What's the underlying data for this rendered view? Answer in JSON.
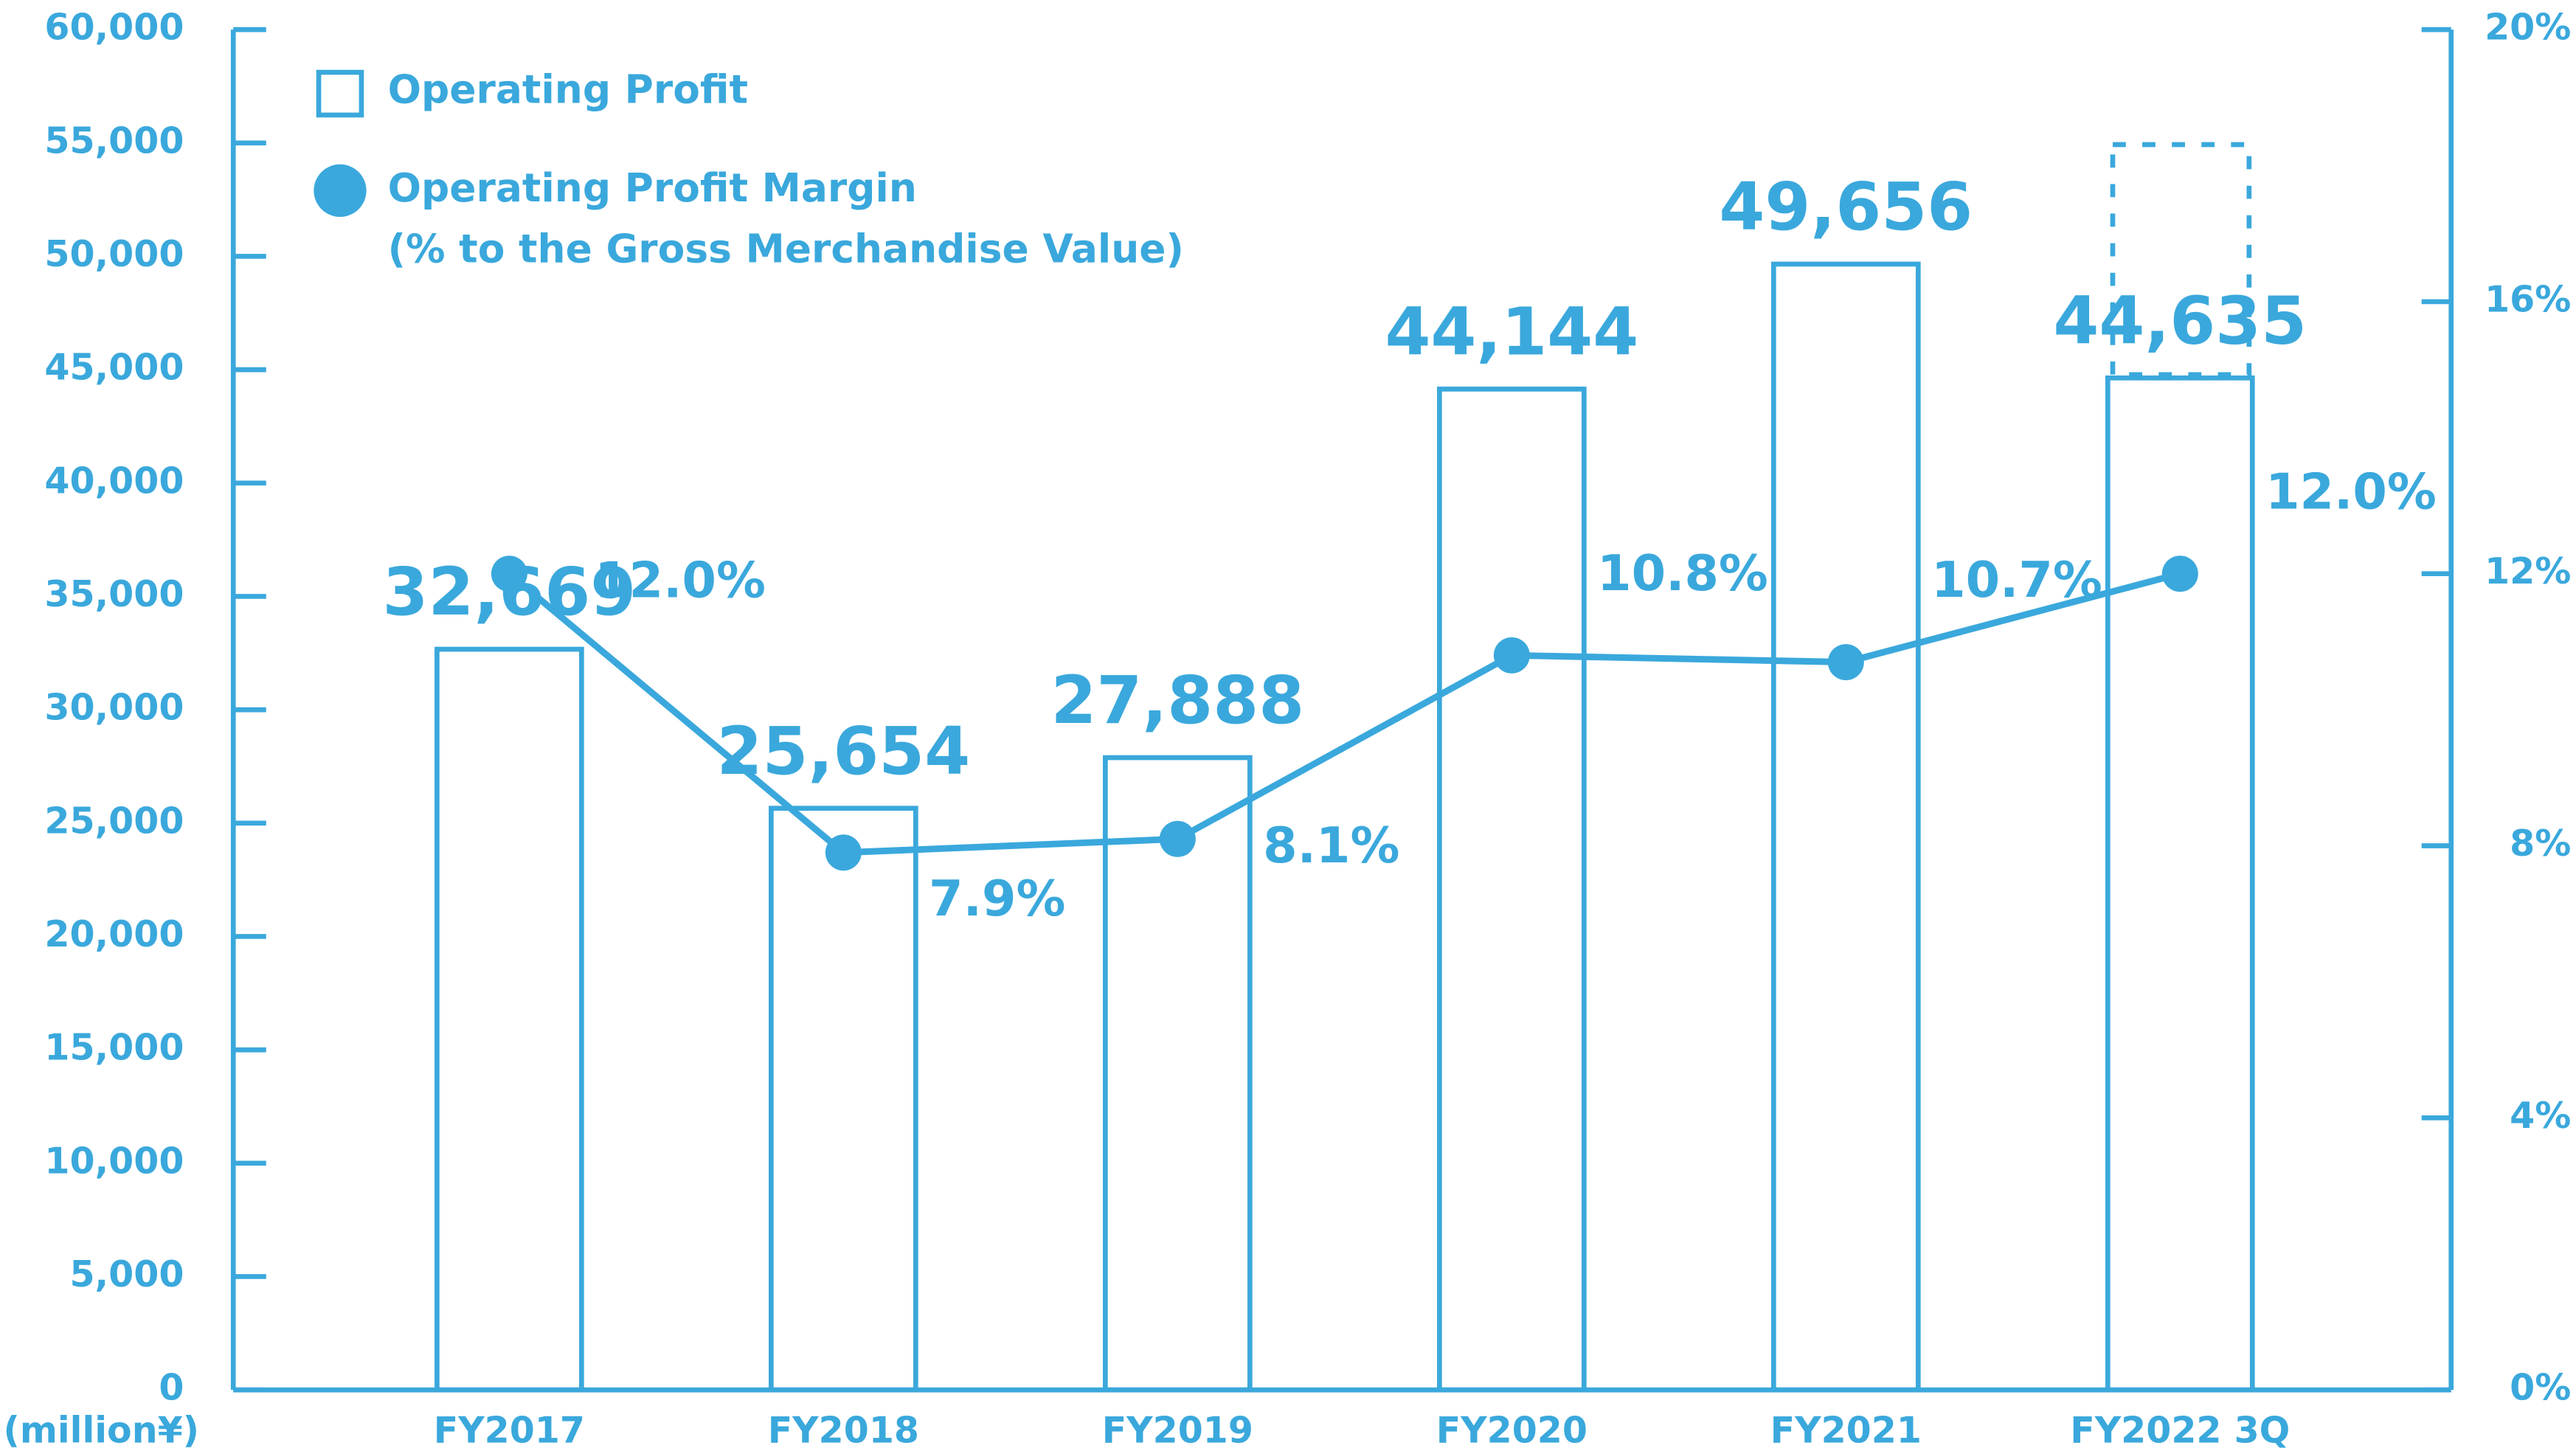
{
  "chart_data": {
    "type": "bar_line",
    "ylabel": "(million¥)",
    "legend_note": "(% to the Gross Merchandise Value)",
    "categories": [
      "FY2017",
      "FY2018",
      "FY2019",
      "FY2020",
      "FY2021",
      "FY2022 3Q"
    ],
    "series": [
      {
        "name": "Operating Profit",
        "color": "#3aa8dc",
        "type": "bar",
        "values": [
          32669,
          25654,
          27888,
          44144,
          49656,
          44635
        ],
        "value_labels": [
          "32,669",
          "25,654",
          "27,888",
          "44,144",
          "49,656",
          "44,635"
        ]
      },
      {
        "name": "Operating Profit Margin",
        "color": "#3aa8dc",
        "type": "line",
        "axis": "y2",
        "values": [
          12.0,
          7.9,
          8.1,
          10.8,
          10.7,
          12.0
        ],
        "value_labels": [
          "12.0%",
          "7.9%",
          "8.1%",
          "10.8%",
          "10.7%",
          "12.0%"
        ]
      }
    ],
    "ylim": [
      0,
      60000
    ],
    "yticks": [
      0,
      {
        "value": 5000,
        "label": "5,000"
      },
      {
        "value": 10000,
        "label": "10,000"
      },
      {
        "value": 15000,
        "label": "15,000"
      },
      {
        "value": 20000,
        "label": "20,000"
      },
      {
        "value": 25000,
        "label": "25,000"
      },
      {
        "value": 30000,
        "label": "30,000"
      },
      {
        "value": 35000,
        "label": "35,000"
      },
      {
        "value": 40000,
        "label": "40,000"
      },
      {
        "value": 45000,
        "label": "45,000"
      },
      {
        "value": 50000,
        "label": "50,000"
      },
      {
        "value": 55000,
        "label": "55,000"
      },
      {
        "value": 60000,
        "label": "60,000"
      }
    ],
    "y2lim": [
      0,
      20
    ],
    "y2ticks": [
      {
        "value": 0,
        "label": "0%"
      },
      {
        "value": 4,
        "label": "4%"
      },
      {
        "value": 8,
        "label": "8%"
      },
      {
        "value": 12,
        "label": "12%"
      },
      {
        "value": 16,
        "label": "16%"
      },
      {
        "value": 20,
        "label": "20%"
      }
    ],
    "legend": "upper left"
  }
}
